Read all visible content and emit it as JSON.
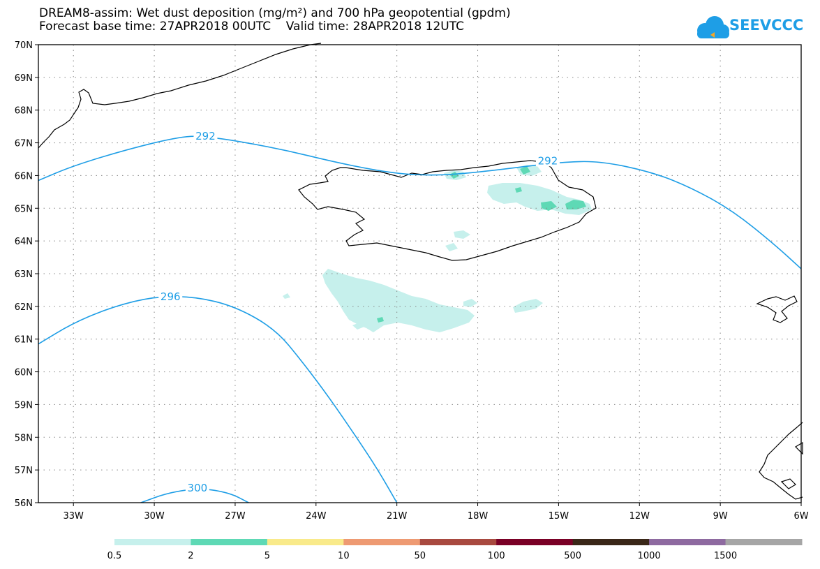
{
  "title_line1": "DREAM8-assim: Wet dust deposition (mg/m²) and 700 hPa geopotential (gpdm)",
  "title_line2": "Forecast base time: 27APR2018 00UTC    Valid time: 28APR2018 12UTC",
  "logo_text": "SEEVCCC",
  "map": {
    "lon_range": [
      -34.3,
      -6
    ],
    "lat_range": [
      56,
      70
    ],
    "lat_labels": [
      "70N",
      "69N",
      "68N",
      "67N",
      "66N",
      "65N",
      "64N",
      "63N",
      "62N",
      "61N",
      "60N",
      "59N",
      "58N",
      "57N",
      "56N"
    ],
    "lat_values": [
      70,
      69,
      68,
      67,
      66,
      65,
      64,
      63,
      62,
      61,
      60,
      59,
      58,
      57,
      56
    ],
    "lon_labels": [
      "33W",
      "30W",
      "27W",
      "24W",
      "21W",
      "18W",
      "15W",
      "12W",
      "9W",
      "6W"
    ],
    "lon_values": [
      -33,
      -30,
      -27,
      -24,
      -21,
      -18,
      -15,
      -12,
      -9,
      -6
    ],
    "contours": [
      {
        "value": "292",
        "points": [
          [
            -34.3,
            65.85
          ],
          [
            -33,
            66.3
          ],
          [
            -31,
            66.8
          ],
          [
            -29,
            67.2
          ],
          [
            -28,
            67.2
          ],
          [
            -25.5,
            66.85
          ],
          [
            -23,
            66.35
          ],
          [
            -21,
            66.05
          ],
          [
            -19.5,
            66.0
          ],
          [
            -18,
            66.1
          ],
          [
            -16,
            66.3
          ],
          [
            -15,
            66.4
          ],
          [
            -13.5,
            66.45
          ],
          [
            -11.5,
            66.1
          ],
          [
            -10,
            65.6
          ],
          [
            -8.5,
            64.9
          ],
          [
            -7,
            63.9
          ],
          [
            -6,
            63.15
          ]
        ]
      },
      {
        "value": "296",
        "points": [
          [
            -34.3,
            60.85
          ],
          [
            -33,
            61.5
          ],
          [
            -31.5,
            62.0
          ],
          [
            -30,
            62.3
          ],
          [
            -28.5,
            62.3
          ],
          [
            -27,
            62.0
          ],
          [
            -25.5,
            61.3
          ],
          [
            -24.5,
            60.3
          ],
          [
            -23.5,
            59.2
          ],
          [
            -22.5,
            58.0
          ],
          [
            -21.7,
            57.0
          ],
          [
            -21,
            56.0
          ]
        ]
      },
      {
        "value": "300",
        "points": [
          [
            -30.5,
            56.0
          ],
          [
            -29.5,
            56.3
          ],
          [
            -28.3,
            56.45
          ],
          [
            -27.2,
            56.3
          ],
          [
            -26.5,
            56.0
          ]
        ]
      }
    ],
    "contour_labels": [
      {
        "text": "292",
        "lon": -28.1,
        "lat": 67.2
      },
      {
        "text": "292",
        "lon": -15.4,
        "lat": 66.45
      },
      {
        "text": "296",
        "lon": -29.4,
        "lat": 62.3
      },
      {
        "text": "300",
        "lon": -28.4,
        "lat": 56.45
      }
    ]
  },
  "colorbar": {
    "labels": [
      "0.5",
      "2",
      "5",
      "10",
      "50",
      "100",
      "500",
      "1000",
      "1500"
    ],
    "colors": [
      "#c6f0ec",
      "#5ed9b5",
      "#f9ea8a",
      "#ee9a72",
      "#a8493f",
      "#7a0026",
      "#3a2718",
      "#8e6aa0",
      "#a6a6a6"
    ]
  },
  "colors": {
    "contour": "#1e9ee6",
    "dust_light": "#c6f0ec",
    "dust_mid": "#5ed9b5"
  }
}
